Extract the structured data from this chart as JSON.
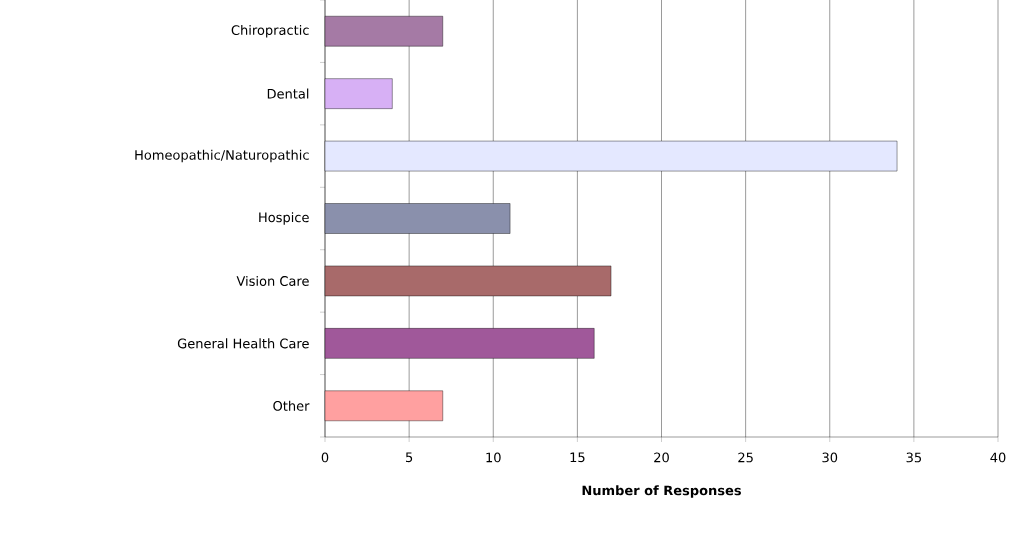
{
  "chart_data": {
    "type": "bar",
    "orientation": "horizontal",
    "xlabel": "Number of Responses",
    "categories": [
      "Chiropractic",
      "Dental",
      "Homeopathic/Naturopathic",
      "Hospice",
      "Vision Care",
      "General Health Care",
      "Other"
    ],
    "values": [
      7,
      4,
      34,
      11,
      17,
      16,
      7
    ],
    "colors": [
      "#a57aa5",
      "#d7b0f5",
      "#e4e8ff",
      "#8a90ac",
      "#a86a6a",
      "#a0589a",
      "#ffa0a0"
    ],
    "xlim": [
      0,
      40
    ],
    "xticks": [
      0,
      5,
      10,
      15,
      20,
      25,
      30,
      35,
      40
    ],
    "grid": "x"
  }
}
